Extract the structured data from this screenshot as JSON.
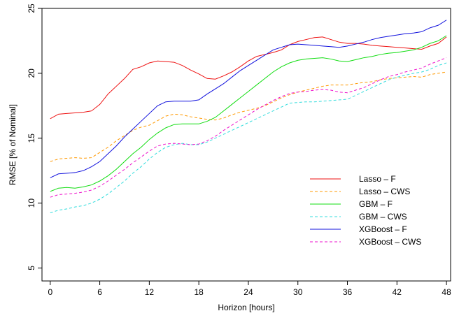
{
  "chart_data": {
    "type": "line",
    "title": "",
    "xlabel": "Horizon [hours]",
    "ylabel": "RMSE [% of Nominal]",
    "xlim": [
      -1,
      48.5
    ],
    "ylim": [
      4,
      25
    ],
    "xticks": [
      0,
      6,
      12,
      18,
      24,
      30,
      36,
      42,
      48
    ],
    "yticks": [
      5,
      10,
      15,
      20,
      25
    ],
    "grid": false,
    "legend_position": "center-right",
    "x": [
      0,
      1,
      2,
      3,
      4,
      5,
      6,
      7,
      8,
      9,
      10,
      11,
      12,
      13,
      14,
      15,
      16,
      17,
      18,
      19,
      20,
      21,
      22,
      23,
      24,
      25,
      26,
      27,
      28,
      29,
      30,
      31,
      32,
      33,
      34,
      35,
      36,
      37,
      38,
      39,
      40,
      41,
      42,
      43,
      44,
      45,
      46,
      47,
      48
    ],
    "series": [
      {
        "name": "Lasso – F",
        "color": "#ee1111",
        "dash": "solid",
        "values": [
          16.5,
          16.85,
          16.9,
          16.95,
          17.0,
          17.1,
          17.6,
          18.4,
          19.0,
          19.6,
          20.3,
          20.5,
          20.8,
          20.95,
          20.9,
          20.85,
          20.6,
          20.25,
          19.95,
          19.6,
          19.55,
          19.8,
          20.1,
          20.5,
          20.95,
          21.3,
          21.45,
          21.6,
          21.8,
          22.2,
          22.45,
          22.6,
          22.75,
          22.8,
          22.6,
          22.4,
          22.3,
          22.3,
          22.25,
          22.15,
          22.1,
          22.05,
          22.0,
          21.95,
          21.9,
          21.85,
          22.1,
          22.3,
          22.8
        ]
      },
      {
        "name": "Lasso – CWS",
        "color": "#ff9900",
        "dash": "dashed",
        "values": [
          13.2,
          13.4,
          13.45,
          13.5,
          13.45,
          13.5,
          13.9,
          14.3,
          14.8,
          15.2,
          15.6,
          15.85,
          16.0,
          16.35,
          16.7,
          16.85,
          16.8,
          16.65,
          16.55,
          16.45,
          16.4,
          16.55,
          16.8,
          17.0,
          17.15,
          17.3,
          17.5,
          17.8,
          18.1,
          18.35,
          18.55,
          18.7,
          18.85,
          19.0,
          19.1,
          19.1,
          19.1,
          19.2,
          19.3,
          19.35,
          19.5,
          19.6,
          19.65,
          19.7,
          19.75,
          19.7,
          19.9,
          20.0,
          20.1
        ]
      },
      {
        "name": "GBM – F",
        "color": "#11dd11",
        "dash": "solid",
        "values": [
          10.9,
          11.15,
          11.2,
          11.15,
          11.25,
          11.4,
          11.7,
          12.1,
          12.6,
          13.2,
          13.8,
          14.3,
          14.9,
          15.4,
          15.8,
          16.05,
          16.1,
          16.1,
          16.1,
          16.3,
          16.6,
          17.1,
          17.6,
          18.1,
          18.6,
          19.1,
          19.6,
          20.1,
          20.5,
          20.8,
          21.0,
          21.1,
          21.15,
          21.2,
          21.1,
          20.95,
          20.9,
          21.05,
          21.2,
          21.3,
          21.45,
          21.55,
          21.6,
          21.7,
          21.8,
          22.0,
          22.3,
          22.5,
          22.9
        ]
      },
      {
        "name": "GBM – CWS",
        "color": "#33dddd",
        "dash": "dashed",
        "values": [
          9.25,
          9.45,
          9.55,
          9.7,
          9.8,
          10.0,
          10.3,
          10.7,
          11.2,
          11.7,
          12.3,
          12.8,
          13.4,
          13.9,
          14.3,
          14.5,
          14.6,
          14.5,
          14.5,
          14.7,
          15.0,
          15.3,
          15.6,
          15.9,
          16.2,
          16.5,
          16.8,
          17.1,
          17.4,
          17.7,
          17.75,
          17.8,
          17.8,
          17.85,
          17.9,
          17.95,
          18.0,
          18.3,
          18.6,
          18.9,
          19.2,
          19.5,
          19.7,
          19.85,
          20.0,
          20.1,
          20.3,
          20.6,
          20.8
        ]
      },
      {
        "name": "XGBoost – F",
        "color": "#1111dd",
        "dash": "solid",
        "values": [
          11.95,
          12.25,
          12.3,
          12.35,
          12.5,
          12.8,
          13.2,
          13.8,
          14.4,
          15.1,
          15.7,
          16.3,
          16.9,
          17.5,
          17.8,
          17.85,
          17.85,
          17.85,
          17.95,
          18.4,
          18.8,
          19.2,
          19.7,
          20.2,
          20.6,
          21.0,
          21.4,
          21.8,
          22.0,
          22.2,
          22.25,
          22.2,
          22.15,
          22.1,
          22.05,
          22.0,
          22.1,
          22.25,
          22.4,
          22.6,
          22.75,
          22.85,
          22.95,
          23.05,
          23.1,
          23.2,
          23.5,
          23.7,
          24.1
        ]
      },
      {
        "name": "XGBoost – CWS",
        "color": "#ee11cc",
        "dash": "dashed",
        "values": [
          10.45,
          10.65,
          10.7,
          10.75,
          10.85,
          11.0,
          11.3,
          11.7,
          12.15,
          12.6,
          13.1,
          13.55,
          14.0,
          14.4,
          14.55,
          14.6,
          14.55,
          14.5,
          14.55,
          14.8,
          15.15,
          15.6,
          16.0,
          16.4,
          16.8,
          17.2,
          17.55,
          17.9,
          18.2,
          18.45,
          18.55,
          18.6,
          18.7,
          18.75,
          18.7,
          18.55,
          18.5,
          18.7,
          18.9,
          19.2,
          19.5,
          19.75,
          19.9,
          20.1,
          20.25,
          20.4,
          20.7,
          20.95,
          21.2
        ]
      }
    ]
  }
}
